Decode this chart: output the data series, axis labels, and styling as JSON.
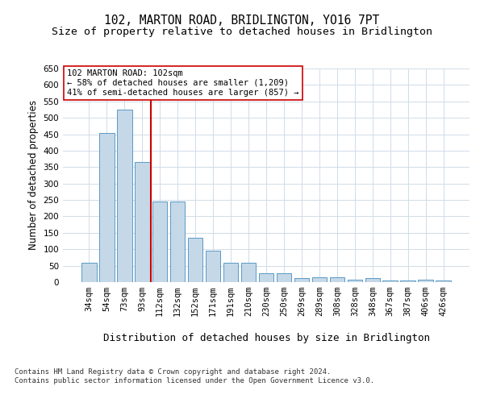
{
  "title": "102, MARTON ROAD, BRIDLINGTON, YO16 7PT",
  "subtitle": "Size of property relative to detached houses in Bridlington",
  "xlabel": "Distribution of detached houses by size in Bridlington",
  "ylabel": "Number of detached properties",
  "categories": [
    "34sqm",
    "54sqm",
    "73sqm",
    "93sqm",
    "112sqm",
    "132sqm",
    "152sqm",
    "171sqm",
    "191sqm",
    "210sqm",
    "230sqm",
    "250sqm",
    "269sqm",
    "289sqm",
    "308sqm",
    "328sqm",
    "348sqm",
    "367sqm",
    "387sqm",
    "406sqm",
    "426sqm"
  ],
  "values": [
    60,
    455,
    525,
    365,
    245,
    245,
    135,
    95,
    60,
    60,
    28,
    28,
    12,
    15,
    15,
    7,
    12,
    5,
    5,
    8,
    5
  ],
  "bar_color": "#c5d8e8",
  "bar_edge_color": "#5a9ac5",
  "vline_x_idx": 3,
  "vline_color": "#cc0000",
  "annotation_text": "102 MARTON ROAD: 102sqm\n← 58% of detached houses are smaller (1,209)\n41% of semi-detached houses are larger (857) →",
  "annotation_box_color": "#ffffff",
  "annotation_box_edge": "#cc0000",
  "ylim": [
    0,
    650
  ],
  "yticks": [
    0,
    50,
    100,
    150,
    200,
    250,
    300,
    350,
    400,
    450,
    500,
    550,
    600,
    650
  ],
  "footer": "Contains HM Land Registry data © Crown copyright and database right 2024.\nContains public sector information licensed under the Open Government Licence v3.0.",
  "bg_color": "#ffffff",
  "grid_color": "#d0dce8",
  "title_fontsize": 10.5,
  "subtitle_fontsize": 9.5,
  "xlabel_fontsize": 9,
  "ylabel_fontsize": 8.5,
  "tick_fontsize": 7.5,
  "annotation_fontsize": 7.5,
  "footer_fontsize": 6.5
}
